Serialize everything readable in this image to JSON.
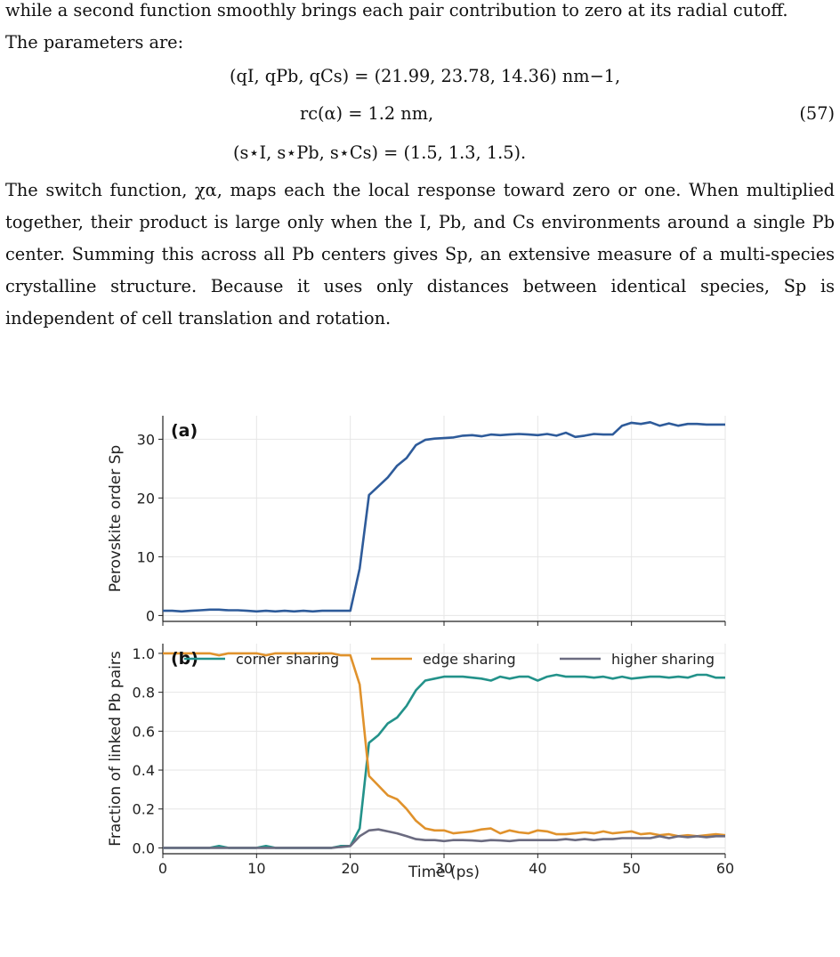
{
  "text": {
    "line1": "while a second function smoothly brings each pair contribution to zero at its radial cutoff.",
    "line2": "The parameters are:",
    "eq1": "(qI, qPb, qCs) = (21.99, 23.78, 14.36) nm−1,",
    "eq2": "rc(α) = 1.2 nm,",
    "eq3": "(s⋆I, s⋆Pb, s⋆Cs) = (1.5, 1.3, 1.5).",
    "eq_number": "(57)",
    "para2": "The switch function, χα, maps each the local response toward zero or one. When multiplied together, their product is large only when the I, Pb, and Cs environments around a single Pb center. Summing this across all Pb centers gives Sp, an extensive measure of a multi-species crystalline structure. Because it uses only distances between identical species, Sp is independent of cell translation and rotation."
  },
  "chart_data": [
    {
      "type": "line",
      "panel": "(a)",
      "ylabel": "Perovskite order Sp",
      "xlim": [
        0,
        60
      ],
      "ylim": [
        -1,
        34
      ],
      "yticks": [
        0,
        10,
        20,
        30
      ],
      "grid": true,
      "series": [
        {
          "color": "#2e5b9a",
          "x": [
            0,
            1,
            2,
            3,
            4,
            5,
            6,
            7,
            8,
            9,
            10,
            11,
            12,
            13,
            14,
            15,
            16,
            17,
            18,
            19,
            20,
            21,
            22,
            23,
            24,
            25,
            26,
            27,
            28,
            29,
            30,
            31,
            32,
            33,
            34,
            35,
            36,
            37,
            38,
            39,
            40,
            41,
            42,
            43,
            44,
            45,
            46,
            47,
            48,
            49,
            50,
            51,
            52,
            53,
            54,
            55,
            56,
            57,
            58,
            59,
            60
          ],
          "y": [
            0.8,
            0.8,
            0.7,
            0.8,
            0.9,
            1.0,
            1.0,
            0.9,
            0.9,
            0.8,
            0.7,
            0.8,
            0.7,
            0.8,
            0.7,
            0.8,
            0.7,
            0.8,
            0.8,
            0.8,
            0.8,
            8.0,
            20.5,
            22.0,
            23.5,
            25.5,
            26.8,
            29.0,
            29.9,
            30.1,
            30.2,
            30.3,
            30.6,
            30.7,
            30.5,
            30.8,
            30.7,
            30.8,
            30.9,
            30.8,
            30.7,
            30.9,
            30.6,
            31.1,
            30.4,
            30.6,
            30.9,
            30.8,
            30.8,
            32.3,
            32.8,
            32.6,
            32.9,
            32.3,
            32.7,
            32.3,
            32.6,
            32.6,
            32.5,
            32.5,
            32.5
          ]
        }
      ]
    },
    {
      "type": "line",
      "panel": "(b)",
      "xlabel": "Time (ps)",
      "ylabel": "Fraction of linked Pb pairs",
      "xlim": [
        0,
        60
      ],
      "ylim": [
        -0.03,
        1.05
      ],
      "xticks": [
        0,
        10,
        20,
        30,
        40,
        50,
        60
      ],
      "yticks": [
        0.0,
        0.2,
        0.4,
        0.6,
        0.8,
        1.0
      ],
      "grid": true,
      "legend": "top",
      "series": [
        {
          "name": "corner sharing",
          "color": "#23928a",
          "x": [
            0,
            1,
            2,
            3,
            4,
            5,
            6,
            7,
            8,
            9,
            10,
            11,
            12,
            13,
            14,
            15,
            16,
            17,
            18,
            19,
            20,
            21,
            22,
            23,
            24,
            25,
            26,
            27,
            28,
            29,
            30,
            31,
            32,
            33,
            34,
            35,
            36,
            37,
            38,
            39,
            40,
            41,
            42,
            43,
            44,
            45,
            46,
            47,
            48,
            49,
            50,
            51,
            52,
            53,
            54,
            55,
            56,
            57,
            58,
            59,
            60
          ],
          "y": [
            0,
            0,
            0,
            0,
            0,
            0,
            0.01,
            0,
            0,
            0,
            0,
            0.01,
            0,
            0,
            0,
            0,
            0,
            0,
            0,
            0.01,
            0.01,
            0.1,
            0.54,
            0.58,
            0.64,
            0.67,
            0.73,
            0.81,
            0.86,
            0.87,
            0.88,
            0.88,
            0.88,
            0.875,
            0.87,
            0.86,
            0.88,
            0.87,
            0.88,
            0.88,
            0.86,
            0.88,
            0.89,
            0.88,
            0.88,
            0.88,
            0.875,
            0.88,
            0.87,
            0.88,
            0.87,
            0.875,
            0.88,
            0.88,
            0.875,
            0.88,
            0.875,
            0.89,
            0.89,
            0.875,
            0.875
          ]
        },
        {
          "name": "edge sharing",
          "color": "#e0922c",
          "x": [
            0,
            1,
            2,
            3,
            4,
            5,
            6,
            7,
            8,
            9,
            10,
            11,
            12,
            13,
            14,
            15,
            16,
            17,
            18,
            19,
            20,
            21,
            22,
            23,
            24,
            25,
            26,
            27,
            28,
            29,
            30,
            31,
            32,
            33,
            34,
            35,
            36,
            37,
            38,
            39,
            40,
            41,
            42,
            43,
            44,
            45,
            46,
            47,
            48,
            49,
            50,
            51,
            52,
            53,
            54,
            55,
            56,
            57,
            58,
            59,
            60
          ],
          "y": [
            1.0,
            1.0,
            1.0,
            1.0,
            1.0,
            1.0,
            0.99,
            1.0,
            1.0,
            1.0,
            1.0,
            0.99,
            1.0,
            1.0,
            1.0,
            1.0,
            1.0,
            1.0,
            1.0,
            0.99,
            0.99,
            0.84,
            0.37,
            0.32,
            0.27,
            0.25,
            0.2,
            0.14,
            0.1,
            0.09,
            0.09,
            0.075,
            0.08,
            0.085,
            0.095,
            0.1,
            0.075,
            0.09,
            0.08,
            0.075,
            0.09,
            0.085,
            0.07,
            0.07,
            0.075,
            0.08,
            0.075,
            0.085,
            0.075,
            0.08,
            0.085,
            0.07,
            0.075,
            0.065,
            0.07,
            0.06,
            0.065,
            0.06,
            0.065,
            0.07,
            0.065
          ]
        },
        {
          "name": "higher sharing",
          "color": "#6b6b80",
          "x": [
            0,
            1,
            2,
            3,
            4,
            5,
            6,
            7,
            8,
            9,
            10,
            11,
            12,
            13,
            14,
            15,
            16,
            17,
            18,
            19,
            20,
            21,
            22,
            23,
            24,
            25,
            26,
            27,
            28,
            29,
            30,
            31,
            32,
            33,
            34,
            35,
            36,
            37,
            38,
            39,
            40,
            41,
            42,
            43,
            44,
            45,
            46,
            47,
            48,
            49,
            50,
            51,
            52,
            53,
            54,
            55,
            56,
            57,
            58,
            59,
            60
          ],
          "y": [
            0,
            0,
            0,
            0,
            0,
            0,
            0,
            0,
            0,
            0,
            0,
            0,
            0,
            0,
            0,
            0,
            0,
            0,
            0,
            0.005,
            0.01,
            0.06,
            0.09,
            0.095,
            0.085,
            0.075,
            0.06,
            0.045,
            0.04,
            0.04,
            0.035,
            0.04,
            0.04,
            0.038,
            0.035,
            0.04,
            0.038,
            0.035,
            0.04,
            0.04,
            0.04,
            0.04,
            0.04,
            0.045,
            0.04,
            0.045,
            0.04,
            0.045,
            0.045,
            0.05,
            0.05,
            0.05,
            0.05,
            0.06,
            0.05,
            0.06,
            0.055,
            0.06,
            0.055,
            0.06,
            0.06
          ]
        }
      ]
    }
  ]
}
